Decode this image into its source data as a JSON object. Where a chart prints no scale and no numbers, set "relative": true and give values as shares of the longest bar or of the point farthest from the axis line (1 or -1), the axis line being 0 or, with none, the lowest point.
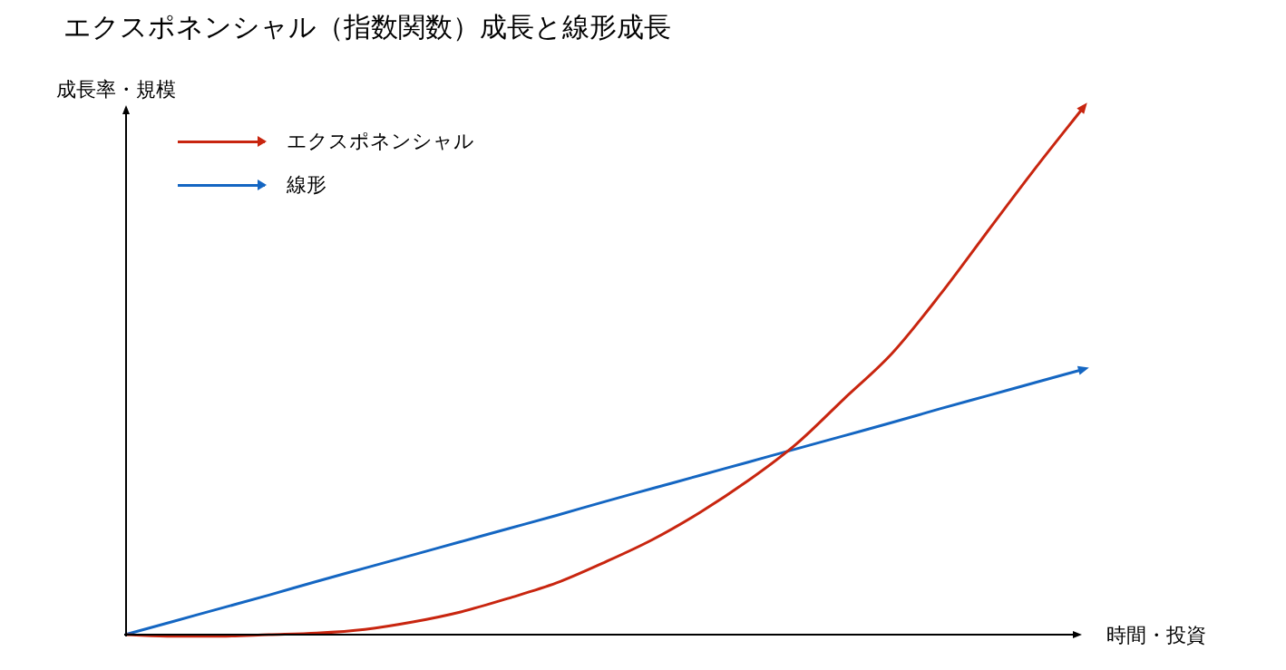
{
  "chart_data": {
    "type": "line",
    "title": "エクスポネンシャル（指数関数）成長と線形成長",
    "xlabel": "時間・投資",
    "ylabel": "成長率・規模",
    "relative": true,
    "legend": "top left",
    "marker": "none",
    "line_style": "solid",
    "categories": [
      null,
      null,
      null,
      null,
      null,
      null,
      null,
      null,
      null,
      null,
      null,
      null,
      null,
      null,
      null,
      null,
      null,
      null,
      null,
      null,
      null
    ],
    "series": [
      {
        "name": "エクスポネンシャル",
        "color": "#c8250f",
        "values": [
          0,
          -0.003,
          -0.003,
          0,
          0.003,
          0.01,
          0.024,
          0.043,
          0.069,
          0.098,
          0.137,
          0.18,
          0.232,
          0.292,
          0.361,
          0.447,
          0.533,
          0.644,
          0.765,
          0.885,
          1
        ]
      },
      {
        "name": "線形",
        "color": "#1466c2",
        "values": [
          0,
          0.025,
          0.05,
          0.075,
          0.101,
          0.126,
          0.151,
          0.176,
          0.201,
          0.226,
          0.252,
          0.277,
          0.302,
          0.327,
          0.352,
          0.377,
          0.402,
          0.428,
          0.453,
          0.478,
          0.503
        ]
      }
    ]
  }
}
